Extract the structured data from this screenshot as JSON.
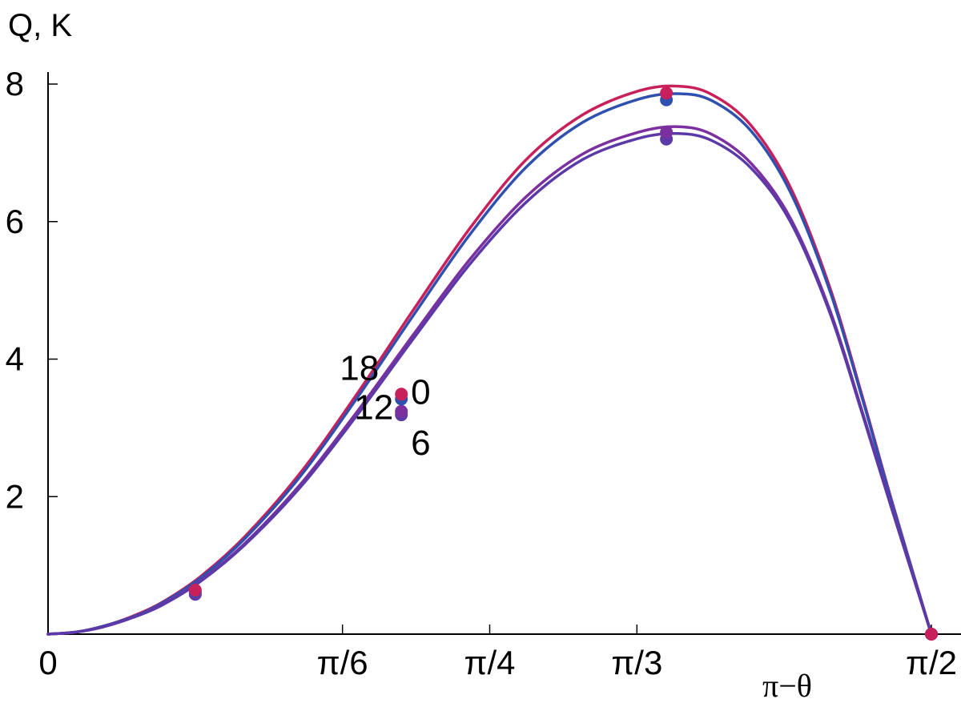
{
  "chart_data": {
    "type": "line",
    "title": "",
    "xlabel": "π−θ",
    "ylabel": "Q, K",
    "xlim": [
      0,
      1.5708
    ],
    "ylim": [
      0,
      8
    ],
    "grid": false,
    "legend": "none",
    "x_ticks": [
      {
        "value": 0,
        "label": "0"
      },
      {
        "value": 0.5236,
        "label": "π/6"
      },
      {
        "value": 0.7854,
        "label": "π/4"
      },
      {
        "value": 1.0472,
        "label": "π/3"
      },
      {
        "value": 1.5708,
        "label": "π/2"
      }
    ],
    "y_ticks": [
      {
        "value": 2,
        "label": "2"
      },
      {
        "value": 4,
        "label": "4"
      },
      {
        "value": 6,
        "label": "6"
      },
      {
        "value": 8,
        "label": "8"
      }
    ],
    "series": [
      {
        "color": "#c8205a",
        "x": [
          0,
          0.05,
          0.1,
          0.15,
          0.2,
          0.27,
          0.35,
          0.45,
          0.55,
          0.65,
          0.75,
          0.85,
          0.95,
          1.05,
          1.12,
          1.18,
          1.25,
          1.32,
          1.39,
          1.45,
          1.5,
          1.5708
        ],
        "y": [
          0,
          0.03,
          0.12,
          0.26,
          0.45,
          0.83,
          1.42,
          2.36,
          3.5,
          4.72,
          5.9,
          6.9,
          7.55,
          7.9,
          7.97,
          7.85,
          7.4,
          6.5,
          5.05,
          3.4,
          1.95,
          0
        ],
        "markers": [
          {
            "x": 0.2618,
            "y": 0.64
          },
          {
            "x": 0.6283,
            "y": 3.49
          },
          {
            "x": 1.0996,
            "y": 7.87
          },
          {
            "x": 1.5708,
            "y": 0
          }
        ]
      },
      {
        "color": "#3050b0",
        "x": [
          0,
          0.05,
          0.1,
          0.15,
          0.2,
          0.27,
          0.35,
          0.45,
          0.55,
          0.65,
          0.75,
          0.85,
          0.95,
          1.05,
          1.12,
          1.18,
          1.25,
          1.32,
          1.39,
          1.45,
          1.5,
          1.5708
        ],
        "y": [
          0,
          0.03,
          0.12,
          0.25,
          0.44,
          0.81,
          1.39,
          2.31,
          3.44,
          4.64,
          5.81,
          6.79,
          7.44,
          7.78,
          7.86,
          7.76,
          7.32,
          6.43,
          5.0,
          3.37,
          1.93,
          0
        ],
        "markers": [
          {
            "x": 0.2618,
            "y": 0.62
          },
          {
            "x": 0.6283,
            "y": 3.42
          },
          {
            "x": 1.0996,
            "y": 7.77
          },
          {
            "x": 1.5708,
            "y": 0
          }
        ]
      },
      {
        "color": "#7c30a0",
        "x": [
          0,
          0.05,
          0.1,
          0.15,
          0.2,
          0.27,
          0.35,
          0.45,
          0.55,
          0.65,
          0.75,
          0.85,
          0.95,
          1.05,
          1.12,
          1.18,
          1.25,
          1.32,
          1.39,
          1.45,
          1.5,
          1.5708
        ],
        "y": [
          0,
          0.03,
          0.11,
          0.24,
          0.42,
          0.77,
          1.32,
          2.19,
          3.24,
          4.36,
          5.45,
          6.36,
          6.98,
          7.3,
          7.38,
          7.27,
          6.85,
          6.05,
          4.72,
          3.18,
          1.85,
          0
        ],
        "markers": [
          {
            "x": 0.2618,
            "y": 0.6
          },
          {
            "x": 0.6283,
            "y": 3.24
          },
          {
            "x": 1.0996,
            "y": 7.3
          },
          {
            "x": 1.5708,
            "y": 0
          }
        ]
      },
      {
        "color": "#5b3aa8",
        "x": [
          0,
          0.05,
          0.1,
          0.15,
          0.2,
          0.27,
          0.35,
          0.45,
          0.55,
          0.65,
          0.75,
          0.85,
          0.95,
          1.05,
          1.12,
          1.18,
          1.25,
          1.32,
          1.39,
          1.45,
          1.5,
          1.5708
        ],
        "y": [
          0,
          0.03,
          0.11,
          0.24,
          0.41,
          0.76,
          1.3,
          2.15,
          3.19,
          4.3,
          5.38,
          6.28,
          6.9,
          7.21,
          7.28,
          7.18,
          6.78,
          6.0,
          4.68,
          3.15,
          1.83,
          0
        ],
        "markers": [
          {
            "x": 0.2618,
            "y": 0.58
          },
          {
            "x": 0.6283,
            "y": 3.19
          },
          {
            "x": 1.0996,
            "y": 7.2
          },
          {
            "x": 1.5708,
            "y": 0
          }
        ]
      }
    ],
    "annotations": [
      {
        "text": "18",
        "x": 0.6283,
        "y": 3.49,
        "anchor": "upper-left"
      },
      {
        "text": "0",
        "x": 0.6283,
        "y": 3.49,
        "anchor": "right"
      },
      {
        "text": "12",
        "x": 0.6283,
        "y": 3.22,
        "anchor": "left"
      },
      {
        "text": "6",
        "x": 0.6283,
        "y": 3.19,
        "anchor": "lower-right"
      }
    ]
  }
}
